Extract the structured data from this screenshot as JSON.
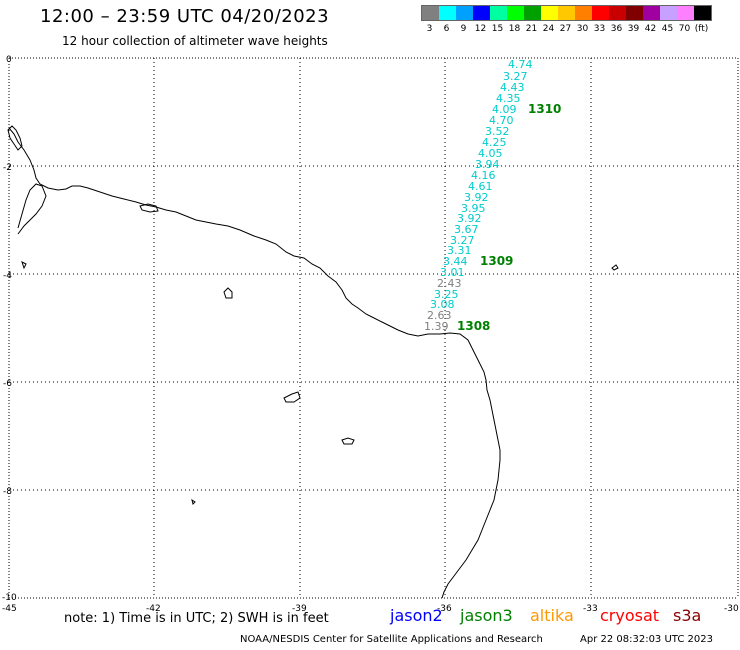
{
  "header": {
    "title": "12:00 – 23:59 UTC 04/20/2023",
    "subtitle": "12 hour collection of altimeter wave heights"
  },
  "legend": {
    "colors": [
      "#808080",
      "#00ffff",
      "#00a0ff",
      "#0000ff",
      "#00ffa0",
      "#00ff00",
      "#00a000",
      "#ffff00",
      "#ffc800",
      "#ff8000",
      "#ff0000",
      "#c80000",
      "#800000",
      "#a000a0",
      "#c8a0ff",
      "#ff80ff",
      "#000000"
    ],
    "labels": [
      "3",
      "6",
      "9",
      "12",
      "15",
      "18",
      "21",
      "24",
      "27",
      "30",
      "33",
      "36",
      "39",
      "42",
      "45",
      "70",
      "(ft)"
    ]
  },
  "axes": {
    "x_labels": [
      "-45",
      "-42",
      "-39",
      "-36",
      "-33",
      "-30"
    ],
    "y_labels": [
      "0",
      "-2",
      "-4",
      "-6",
      "-8",
      "-10"
    ]
  },
  "track": {
    "color_cyan": "#00cccc",
    "color_gray": "#808080",
    "values": [
      "4.74",
      "3.27",
      "4.43",
      "4.35",
      "4.09",
      "4.70",
      "3.52",
      "4.25",
      "4.05",
      "3.94",
      "4.16",
      "4.61",
      "3.92",
      "3.95",
      "3.92",
      "3.67",
      "3.27",
      "3.31",
      "3.44",
      "3.01",
      "2.43",
      "3.25",
      "3.08",
      "2.63",
      "1.39"
    ],
    "value_colors": [
      "cyan",
      "cyan",
      "cyan",
      "cyan",
      "cyan",
      "cyan",
      "cyan",
      "cyan",
      "cyan",
      "cyan",
      "cyan",
      "cyan",
      "cyan",
      "cyan",
      "cyan",
      "cyan",
      "cyan",
      "cyan",
      "cyan",
      "cyan",
      "gray",
      "cyan",
      "cyan",
      "gray",
      "gray"
    ],
    "pass_labels": [
      "1310",
      "1309",
      "1308"
    ]
  },
  "footer": {
    "note": "note:  1) Time is in UTC;  2) SWH is in feet",
    "satellites": [
      {
        "name": "jason2",
        "color": "#0000ff"
      },
      {
        "name": "jason3",
        "color": "#008000"
      },
      {
        "name": "altika",
        "color": "#ff9900"
      },
      {
        "name": "cryosat",
        "color": "#ff0000"
      },
      {
        "name": "s3a",
        "color": "#8b0000"
      }
    ],
    "credit": "NOAA/NESDIS Center for Satellite Applications and Research",
    "timestamp": "Apr 22 08:32:03 UTC 2023"
  }
}
